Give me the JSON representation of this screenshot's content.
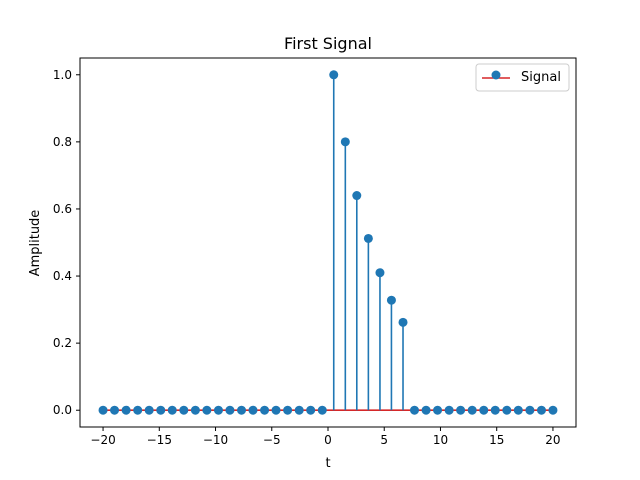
{
  "chart_data": {
    "type": "stem",
    "title": "First Signal",
    "xlabel": "t",
    "ylabel": "Amplitude",
    "xlim": [
      -22.05,
      22.05
    ],
    "ylim": [
      -0.05,
      1.05
    ],
    "xticks": [
      -20,
      -15,
      -10,
      -5,
      0,
      5,
      10,
      15,
      20
    ],
    "xtick_labels": [
      "−20",
      "−15",
      "−10",
      "−5",
      "0",
      "5",
      "10",
      "15",
      "20"
    ],
    "yticks": [
      0.0,
      0.2,
      0.4,
      0.6,
      0.8,
      1.0
    ],
    "ytick_labels": [
      "0.0",
      "0.2",
      "0.4",
      "0.6",
      "0.8",
      "1.0"
    ],
    "grid": false,
    "legend": {
      "position": "top-right",
      "entries": [
        "Signal"
      ]
    },
    "colors": {
      "marker": "#1f77b4",
      "stem": "#1f77b4",
      "baseline": "#d62728"
    },
    "series": [
      {
        "name": "Signal",
        "x": [
          -20,
          -18.98,
          -17.95,
          -16.92,
          -15.9,
          -14.87,
          -13.85,
          -12.82,
          -11.79,
          -10.77,
          -9.74,
          -8.72,
          -7.69,
          -6.67,
          -5.64,
          -4.62,
          -3.59,
          -2.56,
          -1.54,
          -0.51,
          0.51,
          1.54,
          2.56,
          3.59,
          4.62,
          5.64,
          6.67,
          7.69,
          8.72,
          9.74,
          10.77,
          11.79,
          12.82,
          13.85,
          14.87,
          15.9,
          16.92,
          17.95,
          18.98,
          20
        ],
        "y": [
          0,
          0,
          0,
          0,
          0,
          0,
          0,
          0,
          0,
          0,
          0,
          0,
          0,
          0,
          0,
          0,
          0,
          0,
          0,
          0,
          1.0,
          0.8,
          0.64,
          0.512,
          0.41,
          0.328,
          0.262,
          0,
          0,
          0,
          0,
          0,
          0,
          0,
          0,
          0,
          0,
          0,
          0,
          0
        ]
      }
    ]
  }
}
